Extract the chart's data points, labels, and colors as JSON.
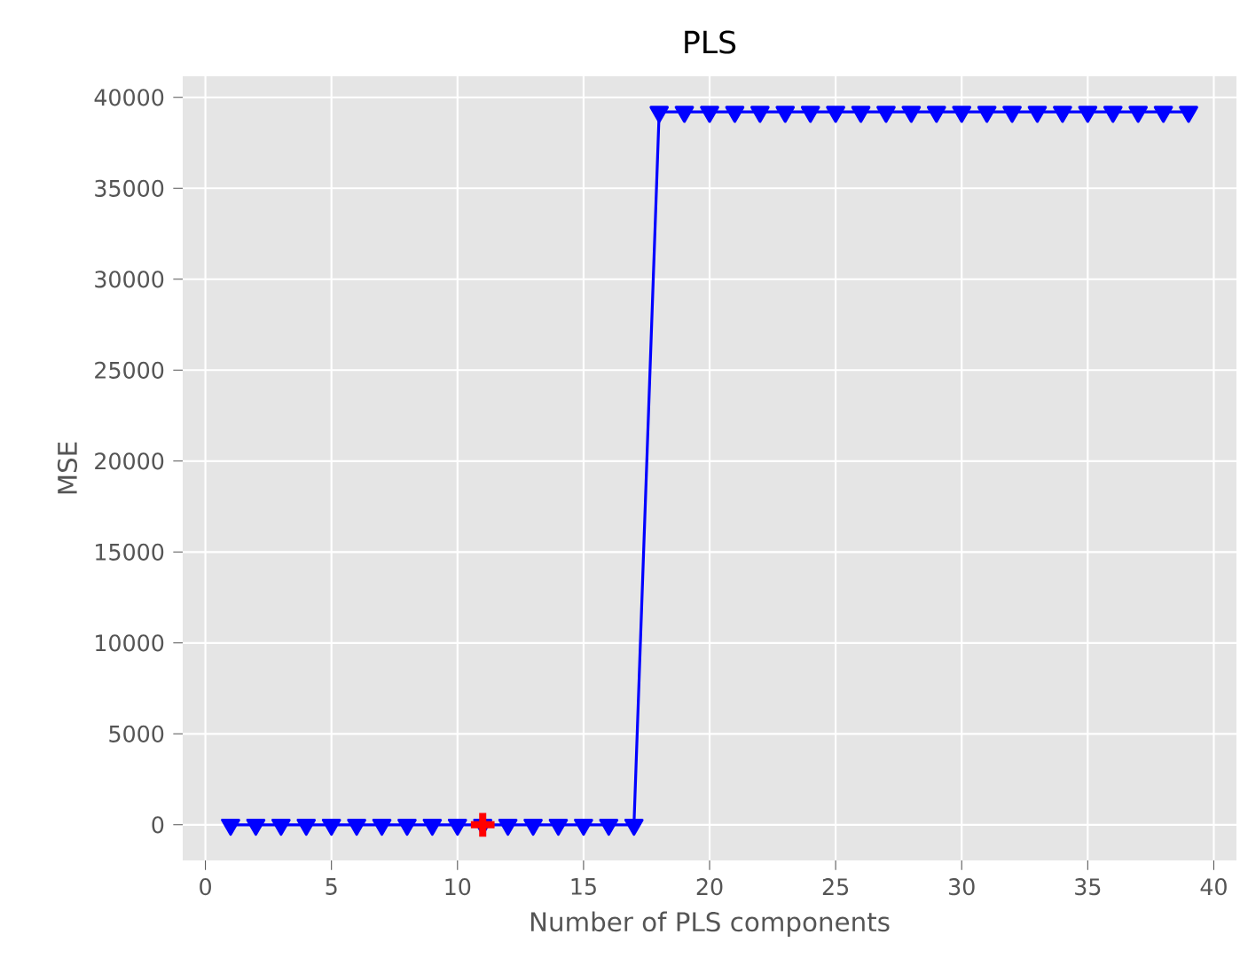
{
  "chart_data": {
    "type": "line",
    "title": "PLS",
    "xlabel": "Number of PLS components",
    "ylabel": "MSE",
    "series": [
      {
        "color": "#0000ff",
        "marker": "triangle",
        "x": [
          1,
          2,
          3,
          4,
          5,
          6,
          7,
          8,
          9,
          10,
          11,
          12,
          13,
          14,
          15,
          16,
          17,
          18,
          19,
          20,
          21,
          22,
          23,
          24,
          25,
          26,
          27,
          28,
          29,
          30,
          31,
          32,
          33,
          34,
          35,
          36,
          37,
          38,
          39
        ],
        "values": [
          0,
          0,
          0,
          0,
          0,
          0,
          0,
          0,
          0,
          0,
          0,
          0,
          0,
          0,
          0,
          0,
          0,
          39200,
          39200,
          39200,
          39200,
          39200,
          39200,
          39200,
          39200,
          39200,
          39200,
          39200,
          39200,
          39200,
          39200,
          39200,
          39200,
          39200,
          39200,
          39200,
          39200,
          39200,
          39200
        ]
      },
      {
        "type": "scatter",
        "color": "#ff0000",
        "marker": "cross",
        "x": [
          11
        ],
        "values": [
          0
        ]
      }
    ],
    "xlim": [
      -0.9,
      40.9
    ],
    "ylim": [
      -1960,
      41160
    ],
    "xticks": [
      0,
      5,
      10,
      15,
      20,
      25,
      30,
      35,
      40
    ],
    "yticks": [
      0,
      5000,
      10000,
      15000,
      20000,
      25000,
      30000,
      35000,
      40000
    ],
    "grid": true
  }
}
